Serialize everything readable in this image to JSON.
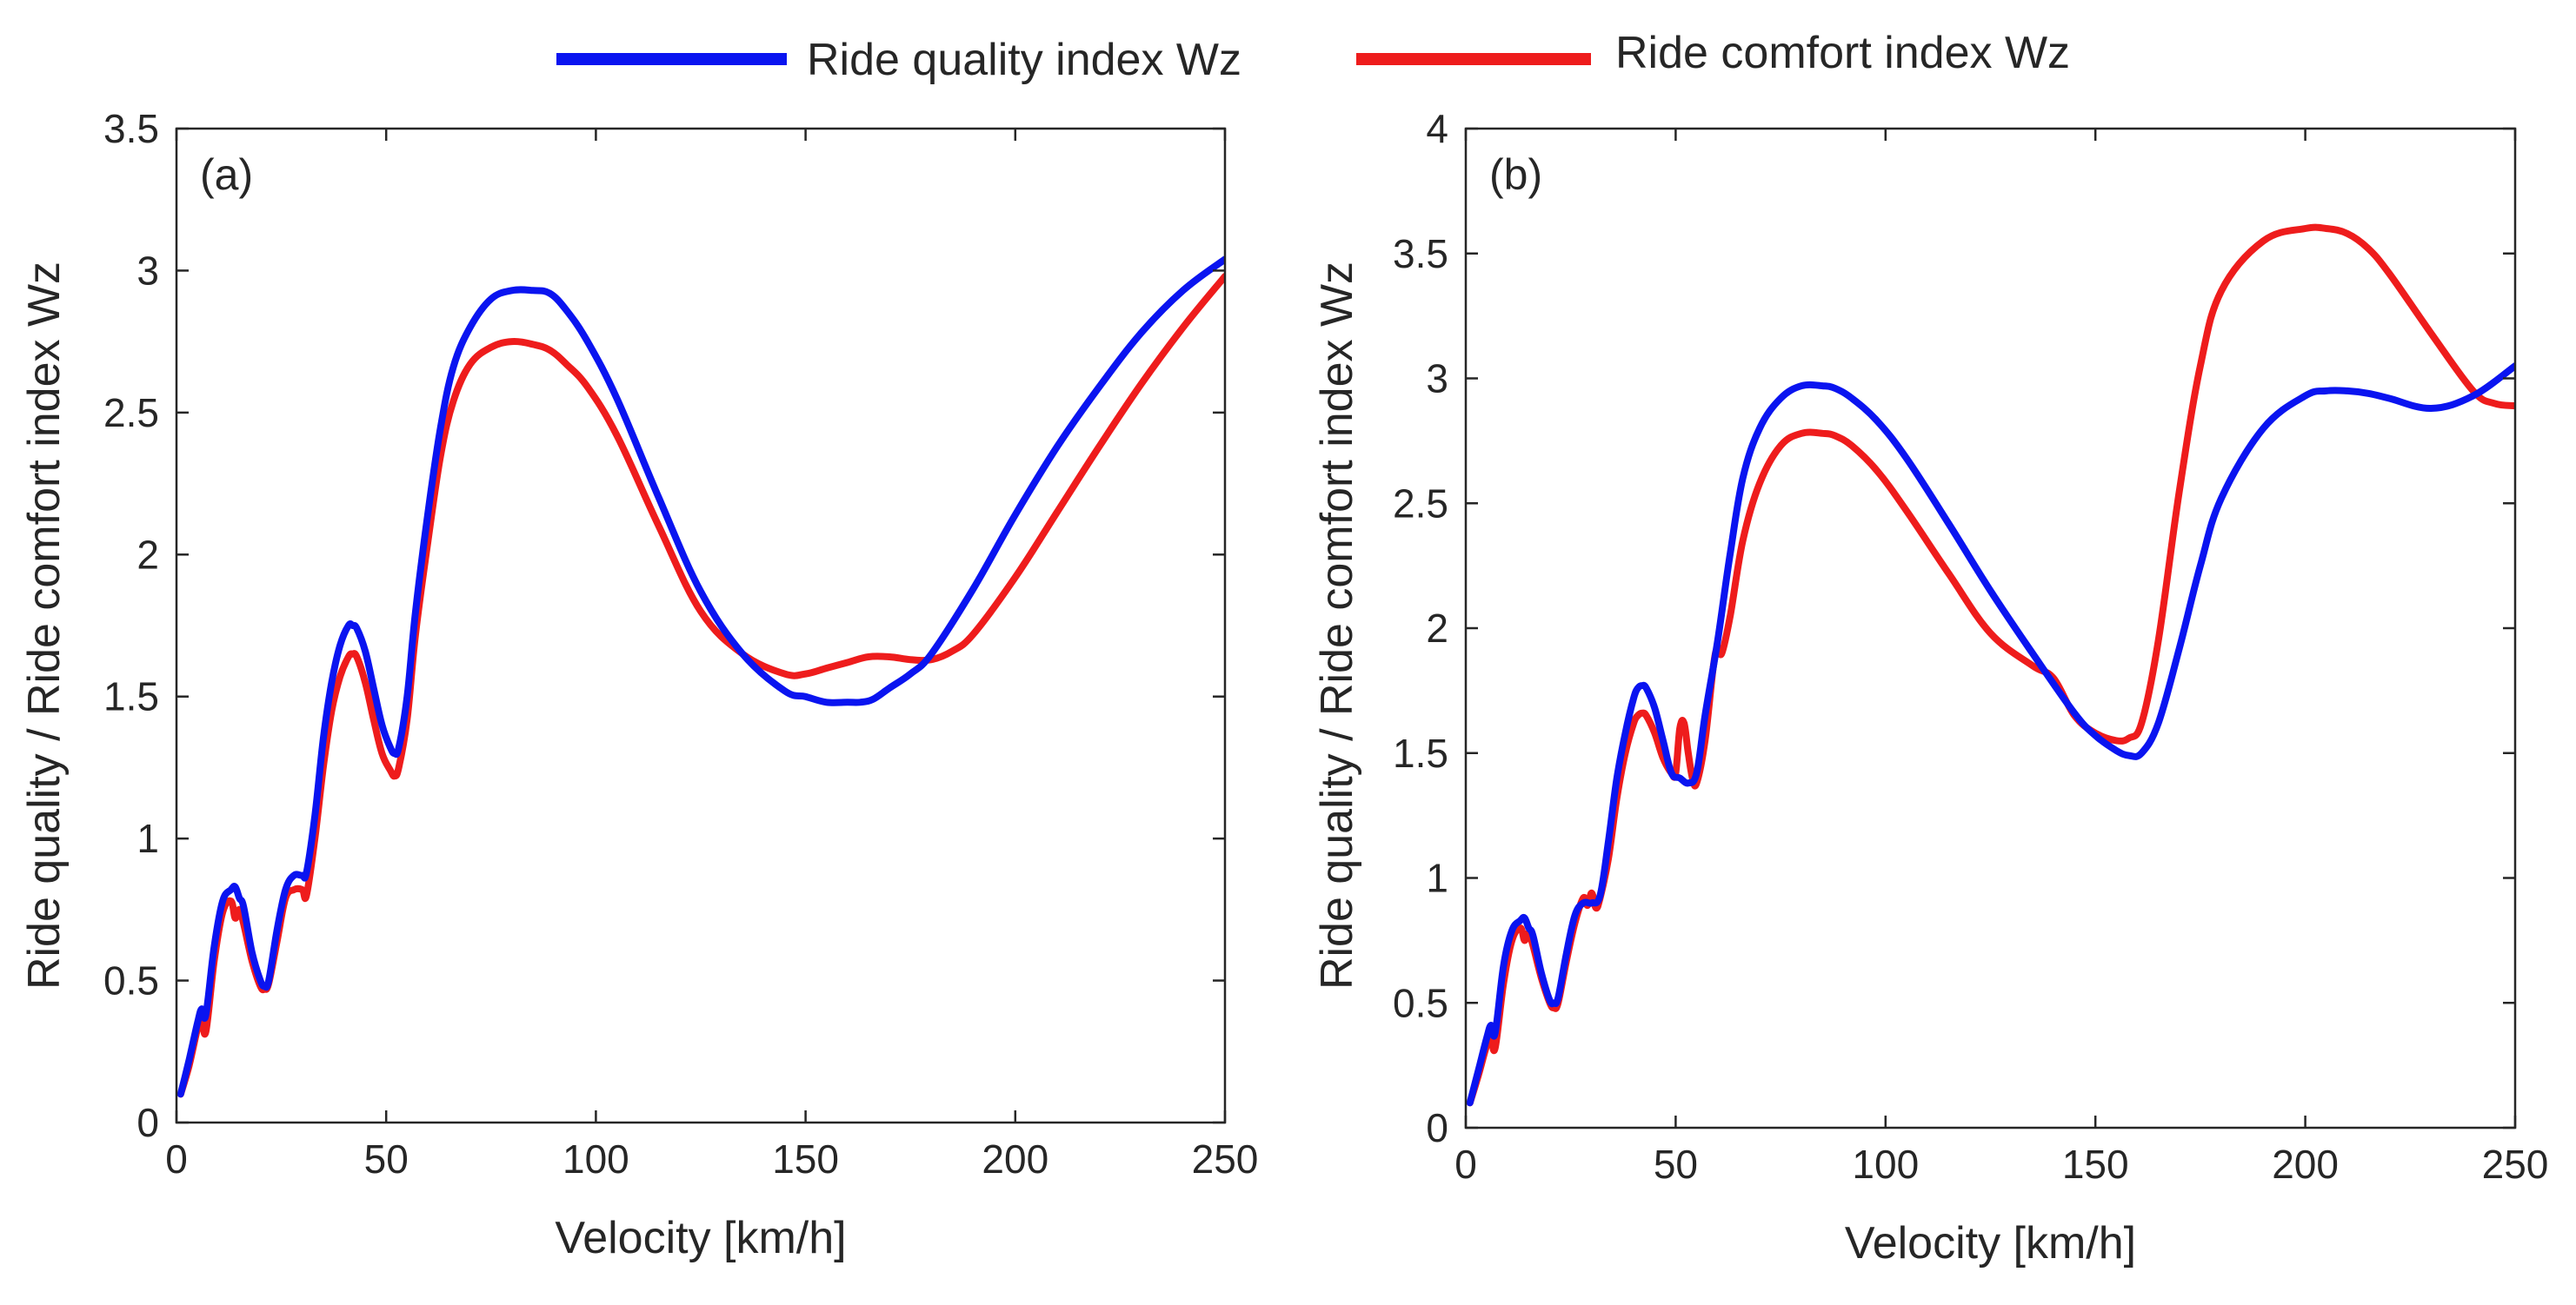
{
  "legend": {
    "quality_label": "Ride quality index Wz",
    "comfort_label": "Ride comfort index Wz"
  },
  "colors": {
    "quality": "#0a14f0",
    "comfort": "#ee1c1c",
    "axis": "#262626"
  },
  "chart_data": [
    {
      "type": "line",
      "panel_label": "(a)",
      "xlabel": "Velocity [km/h]",
      "ylabel": "Ride quality / Ride comfort index Wz",
      "xlim": [
        0,
        250
      ],
      "ylim": [
        0,
        3.5
      ],
      "xticks": [
        0,
        50,
        100,
        150,
        200,
        250
      ],
      "xtick_labels": [
        "0",
        "50",
        "100",
        "150",
        "200",
        "250"
      ],
      "yticks": [
        0,
        0.5,
        1,
        1.5,
        2,
        2.5,
        3,
        3.5
      ],
      "ytick_labels": [
        "0",
        "0.5",
        "1",
        "1.5",
        "2",
        "2.5",
        "3",
        "3.5"
      ],
      "grid": false,
      "series": [
        {
          "name": "Ride quality index Wz",
          "x": [
            1,
            3,
            5,
            6,
            7,
            9,
            11,
            13,
            14,
            15,
            16,
            18,
            20,
            21,
            22,
            24,
            26,
            28,
            30,
            31,
            33,
            35,
            37,
            39,
            41,
            42,
            43,
            45,
            47,
            49,
            51,
            52,
            53,
            55,
            57,
            60,
            63,
            66,
            70,
            75,
            80,
            85,
            89,
            93,
            98,
            105,
            115,
            125,
            135,
            145,
            150,
            155,
            160,
            163,
            166,
            170,
            175,
            180,
            190,
            200,
            210,
            220,
            230,
            240,
            250
          ],
          "y": [
            0.1,
            0.22,
            0.35,
            0.4,
            0.38,
            0.62,
            0.78,
            0.82,
            0.83,
            0.79,
            0.76,
            0.6,
            0.5,
            0.48,
            0.5,
            0.68,
            0.82,
            0.87,
            0.87,
            0.88,
            1.08,
            1.35,
            1.55,
            1.68,
            1.75,
            1.75,
            1.74,
            1.66,
            1.53,
            1.4,
            1.32,
            1.3,
            1.32,
            1.5,
            1.8,
            2.15,
            2.45,
            2.66,
            2.8,
            2.9,
            2.93,
            2.93,
            2.92,
            2.86,
            2.75,
            2.55,
            2.2,
            1.87,
            1.65,
            1.52,
            1.5,
            1.48,
            1.48,
            1.48,
            1.49,
            1.53,
            1.58,
            1.65,
            1.88,
            2.14,
            2.38,
            2.59,
            2.78,
            2.93,
            3.04
          ]
        },
        {
          "name": "Ride comfort index Wz",
          "x": [
            1,
            3,
            5,
            6,
            7,
            9,
            11,
            13,
            14,
            15,
            16,
            18,
            20,
            21,
            22,
            24,
            26,
            28,
            30,
            31,
            33,
            35,
            37,
            39,
            41,
            42,
            43,
            45,
            47,
            49,
            51,
            52,
            53,
            55,
            57,
            60,
            63,
            66,
            70,
            75,
            80,
            85,
            89,
            93,
            98,
            105,
            115,
            125,
            135,
            145,
            150,
            155,
            160,
            165,
            170,
            175,
            180,
            185,
            190,
            200,
            210,
            220,
            230,
            240,
            250
          ],
          "y": [
            0.1,
            0.2,
            0.33,
            0.37,
            0.32,
            0.57,
            0.74,
            0.78,
            0.72,
            0.75,
            0.7,
            0.57,
            0.48,
            0.47,
            0.49,
            0.64,
            0.79,
            0.82,
            0.82,
            0.8,
            1.0,
            1.25,
            1.45,
            1.57,
            1.64,
            1.65,
            1.64,
            1.55,
            1.42,
            1.3,
            1.24,
            1.22,
            1.25,
            1.42,
            1.72,
            2.05,
            2.35,
            2.54,
            2.67,
            2.73,
            2.75,
            2.74,
            2.72,
            2.67,
            2.59,
            2.42,
            2.1,
            1.8,
            1.65,
            1.58,
            1.58,
            1.6,
            1.62,
            1.64,
            1.64,
            1.63,
            1.63,
            1.66,
            1.72,
            1.92,
            2.15,
            2.38,
            2.6,
            2.8,
            2.98
          ]
        }
      ]
    },
    {
      "type": "line",
      "panel_label": "(b)",
      "xlabel": "Velocity [km/h]",
      "ylabel": "Ride quality / Ride comfort index Wz",
      "xlim": [
        0,
        250
      ],
      "ylim": [
        0,
        4
      ],
      "xticks": [
        0,
        50,
        100,
        150,
        200,
        250
      ],
      "xtick_labels": [
        "0",
        "50",
        "100",
        "150",
        "200",
        "250"
      ],
      "yticks": [
        0,
        0.5,
        1,
        1.5,
        2,
        2.5,
        3,
        3.5,
        4
      ],
      "ytick_labels": [
        "0",
        "0.5",
        "1",
        "1.5",
        "2",
        "2.5",
        "3",
        "3.5",
        "4"
      ],
      "grid": false,
      "series": [
        {
          "name": "Ride quality index Wz",
          "x": [
            1,
            3,
            5,
            6,
            7,
            9,
            11,
            13,
            14,
            15,
            16,
            18,
            20,
            21,
            22,
            24,
            26,
            28,
            30,
            32,
            34,
            36,
            38,
            40,
            41,
            42,
            43,
            45,
            47,
            49,
            51,
            53,
            55,
            57,
            60,
            63,
            66,
            70,
            75,
            80,
            85,
            88,
            92,
            98,
            105,
            115,
            125,
            135,
            145,
            150,
            155,
            158,
            161,
            165,
            170,
            175,
            180,
            190,
            200,
            205,
            210,
            215,
            220,
            230,
            240,
            250
          ],
          "y": [
            0.1,
            0.23,
            0.36,
            0.41,
            0.38,
            0.65,
            0.79,
            0.83,
            0.84,
            0.8,
            0.77,
            0.62,
            0.51,
            0.5,
            0.52,
            0.7,
            0.85,
            0.9,
            0.9,
            0.93,
            1.15,
            1.4,
            1.58,
            1.72,
            1.76,
            1.77,
            1.76,
            1.68,
            1.55,
            1.42,
            1.4,
            1.38,
            1.42,
            1.65,
            1.95,
            2.3,
            2.6,
            2.8,
            2.92,
            2.97,
            2.97,
            2.96,
            2.92,
            2.83,
            2.68,
            2.42,
            2.15,
            1.9,
            1.66,
            1.57,
            1.51,
            1.49,
            1.5,
            1.62,
            1.92,
            2.25,
            2.52,
            2.8,
            2.93,
            2.95,
            2.95,
            2.94,
            2.92,
            2.88,
            2.93,
            3.05
          ]
        },
        {
          "name": "Ride comfort index Wz",
          "x": [
            1,
            3,
            5,
            6,
            7,
            9,
            11,
            13,
            14,
            15,
            16,
            18,
            20,
            21,
            22,
            24,
            26,
            28,
            29,
            30,
            31,
            32,
            34,
            36,
            38,
            40,
            41,
            42,
            43,
            45,
            47,
            49,
            50,
            51,
            52,
            53,
            54,
            55,
            57,
            59,
            60,
            61,
            63,
            66,
            70,
            75,
            80,
            85,
            88,
            92,
            98,
            105,
            115,
            125,
            135,
            140,
            145,
            150,
            155,
            158,
            161,
            165,
            170,
            175,
            180,
            190,
            200,
            205,
            210,
            215,
            220,
            230,
            240,
            245,
            250
          ],
          "y": [
            0.1,
            0.21,
            0.33,
            0.36,
            0.32,
            0.58,
            0.75,
            0.8,
            0.75,
            0.78,
            0.73,
            0.6,
            0.5,
            0.48,
            0.5,
            0.67,
            0.82,
            0.92,
            0.89,
            0.94,
            0.88,
            0.92,
            1.08,
            1.32,
            1.5,
            1.62,
            1.65,
            1.66,
            1.65,
            1.58,
            1.48,
            1.42,
            1.42,
            1.6,
            1.62,
            1.5,
            1.4,
            1.38,
            1.55,
            1.85,
            1.92,
            1.9,
            2.05,
            2.35,
            2.58,
            2.73,
            2.78,
            2.78,
            2.77,
            2.73,
            2.63,
            2.47,
            2.22,
            1.98,
            1.85,
            1.8,
            1.65,
            1.58,
            1.55,
            1.56,
            1.62,
            1.95,
            2.55,
            3.05,
            3.35,
            3.55,
            3.6,
            3.6,
            3.58,
            3.52,
            3.42,
            3.18,
            2.95,
            2.9,
            2.89
          ]
        }
      ]
    }
  ]
}
